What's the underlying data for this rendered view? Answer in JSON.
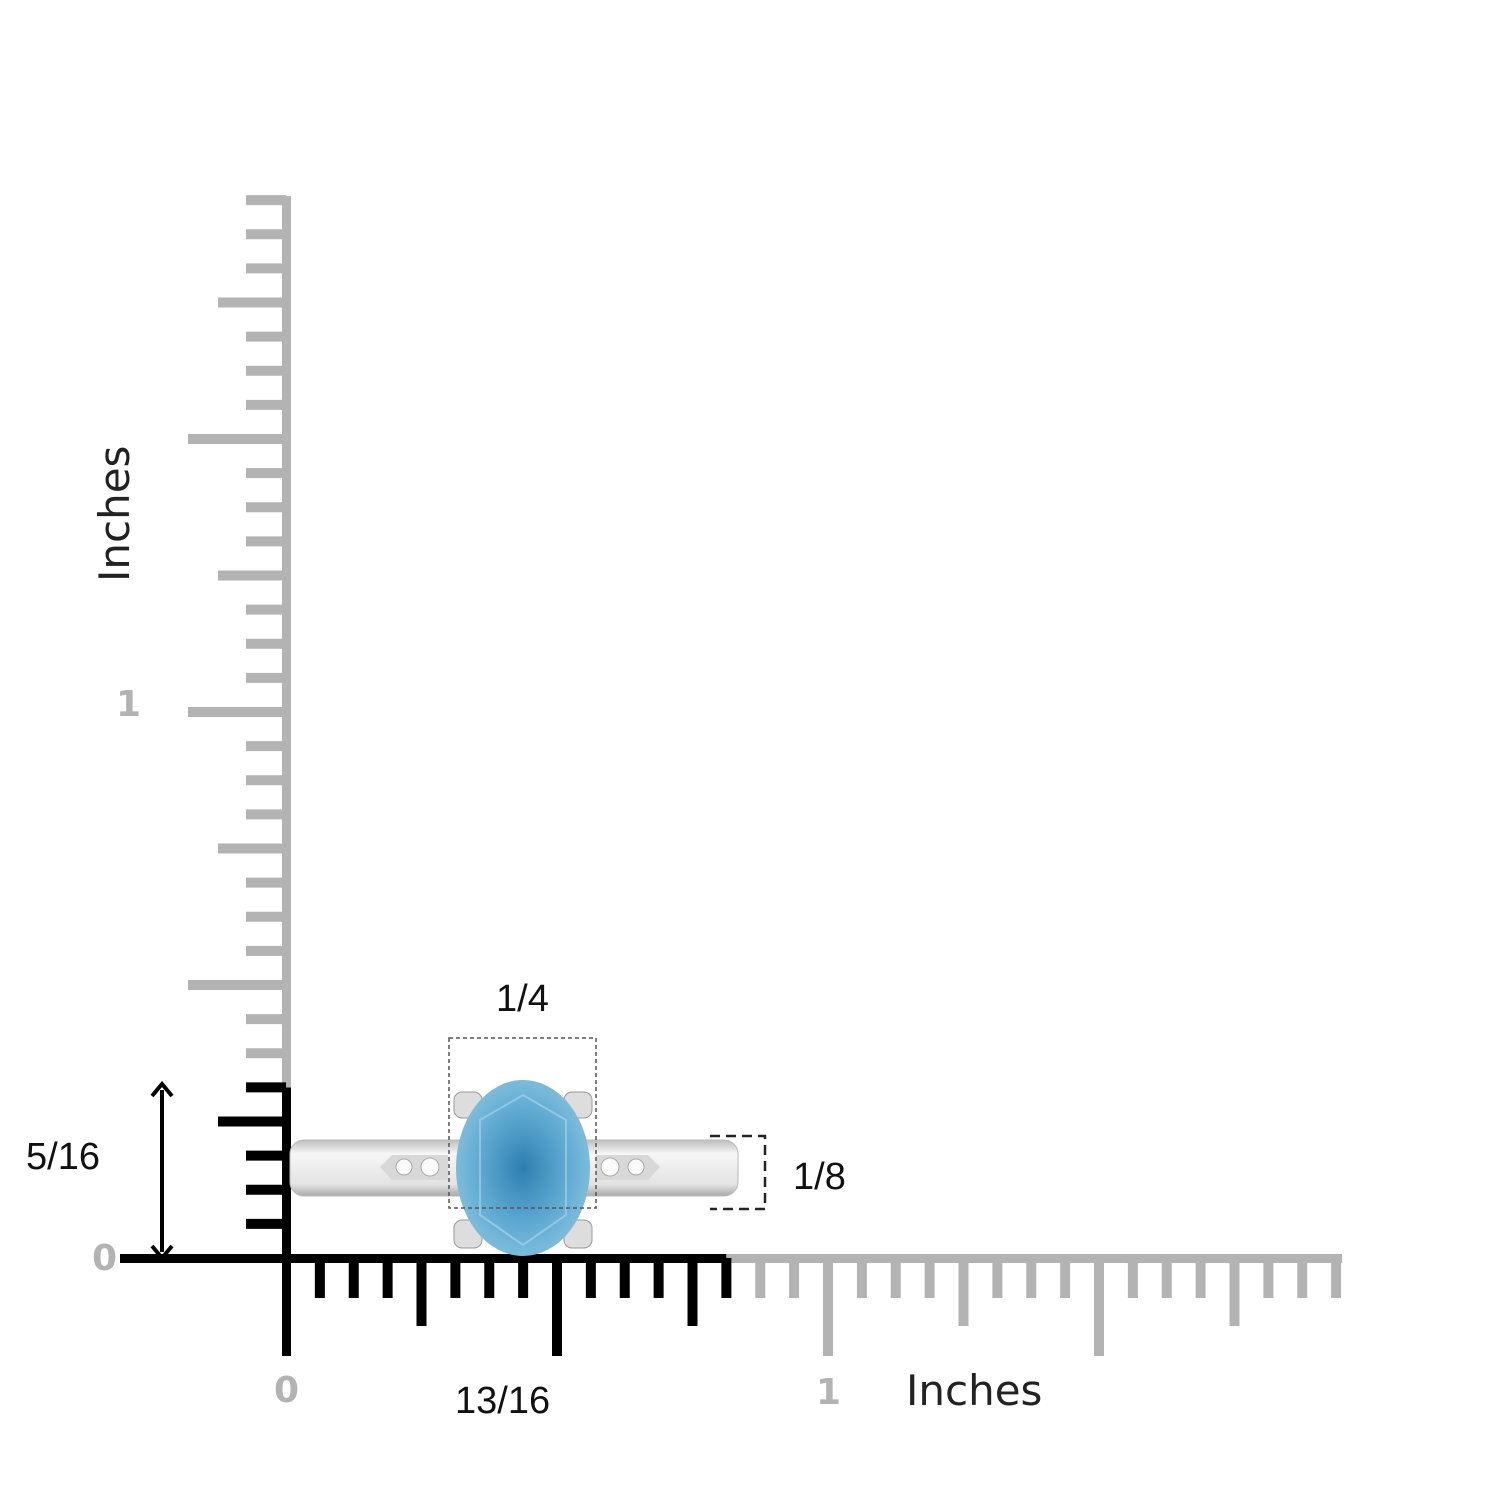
{
  "colors": {
    "ruler_active": "#000000",
    "ruler_inactive": "#b3b3b3",
    "gem": "#5aa6cf",
    "metal": "#e6e6e6"
  },
  "x_axis": {
    "label": "Inches",
    "tick_labels": [
      "0",
      "1"
    ],
    "highlight_inches": 0.8125,
    "max_inches": 1.9375,
    "divisions_per_inch": 16
  },
  "y_axis": {
    "label": "Inches",
    "tick_labels": [
      "0",
      "1"
    ],
    "highlight_inches": 0.3125,
    "max_inches": 1.9375,
    "divisions_per_inch": 16
  },
  "dimensions": {
    "length": "13/16",
    "height": "5/16",
    "gem_width": "1/4",
    "band_width": "1/8"
  }
}
